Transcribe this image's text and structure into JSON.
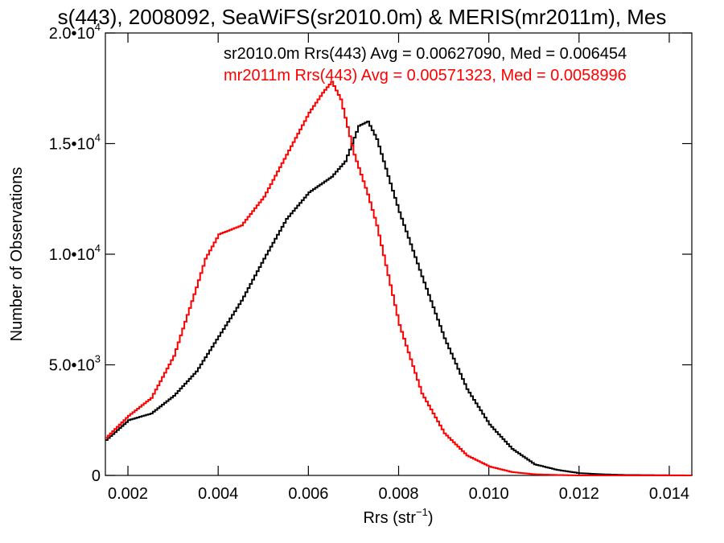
{
  "chart_data": {
    "type": "line",
    "title": "s(443), 2008092, SeaWiFS(sr2010.0m) & MERIS(mr2011m), Mes",
    "xlabel": "Rrs (str",
    "xlabel_sup": "−1",
    "xlabel_close": ")",
    "ylabel": "Number of Observations",
    "xlim": [
      0.0015,
      0.0145
    ],
    "ylim": [
      0,
      20000
    ],
    "x_ticks": [
      0.002,
      0.004,
      0.006,
      0.008,
      0.01,
      0.012,
      0.014
    ],
    "x_tick_labels": [
      "0.002",
      "0.004",
      "0.006",
      "0.008",
      "0.010",
      "0.012",
      "0.014"
    ],
    "y_ticks": [
      {
        "value": 0,
        "mantissa": "0",
        "exp": ""
      },
      {
        "value": 5000,
        "mantissa": "5.0•10",
        "exp": "3"
      },
      {
        "value": 10000,
        "mantissa": "1.0•10",
        "exp": "4"
      },
      {
        "value": 15000,
        "mantissa": "1.5•10",
        "exp": "4"
      },
      {
        "value": 20000,
        "mantissa": "2.0•10",
        "exp": "4"
      }
    ],
    "legend_placement": "top-right",
    "series": [
      {
        "name": "sr2010.0m",
        "legend_text": "sr2010.0m Rrs(443) Avg = 0.00627090, Med = 0.006454",
        "color": "#000000",
        "x": [
          0.0015,
          0.002,
          0.0025,
          0.003,
          0.0035,
          0.004,
          0.0045,
          0.005,
          0.0055,
          0.006,
          0.0065,
          0.0068,
          0.0071,
          0.0073,
          0.0075,
          0.0078,
          0.008,
          0.0085,
          0.009,
          0.0095,
          0.01,
          0.0105,
          0.011,
          0.0115,
          0.012,
          0.0125,
          0.013,
          0.0145
        ],
        "y": [
          1600,
          2500,
          2800,
          3600,
          4700,
          6300,
          7900,
          9800,
          11600,
          12800,
          13500,
          14200,
          15800,
          16000,
          15200,
          13200,
          11900,
          9000,
          6200,
          3900,
          2300,
          1200,
          500,
          250,
          100,
          50,
          20,
          0
        ]
      },
      {
        "name": "mr2011m",
        "legend_text": "mr2011m Rrs(443) Avg = 0.00571323, Med = 0.0058996",
        "color": "#ff0000",
        "x": [
          0.0015,
          0.002,
          0.0025,
          0.003,
          0.0035,
          0.0037,
          0.004,
          0.0045,
          0.005,
          0.0055,
          0.006,
          0.0063,
          0.0065,
          0.0067,
          0.007,
          0.0073,
          0.0075,
          0.0078,
          0.008,
          0.0085,
          0.009,
          0.0095,
          0.01,
          0.0105,
          0.011,
          0.0115,
          0.012,
          0.0145
        ],
        "y": [
          1700,
          2700,
          3500,
          5400,
          8500,
          9800,
          10900,
          11300,
          12600,
          14500,
          16400,
          17300,
          17800,
          17000,
          14500,
          12700,
          11300,
          8600,
          6800,
          3700,
          1900,
          900,
          400,
          150,
          50,
          20,
          0,
          0
        ]
      }
    ]
  }
}
